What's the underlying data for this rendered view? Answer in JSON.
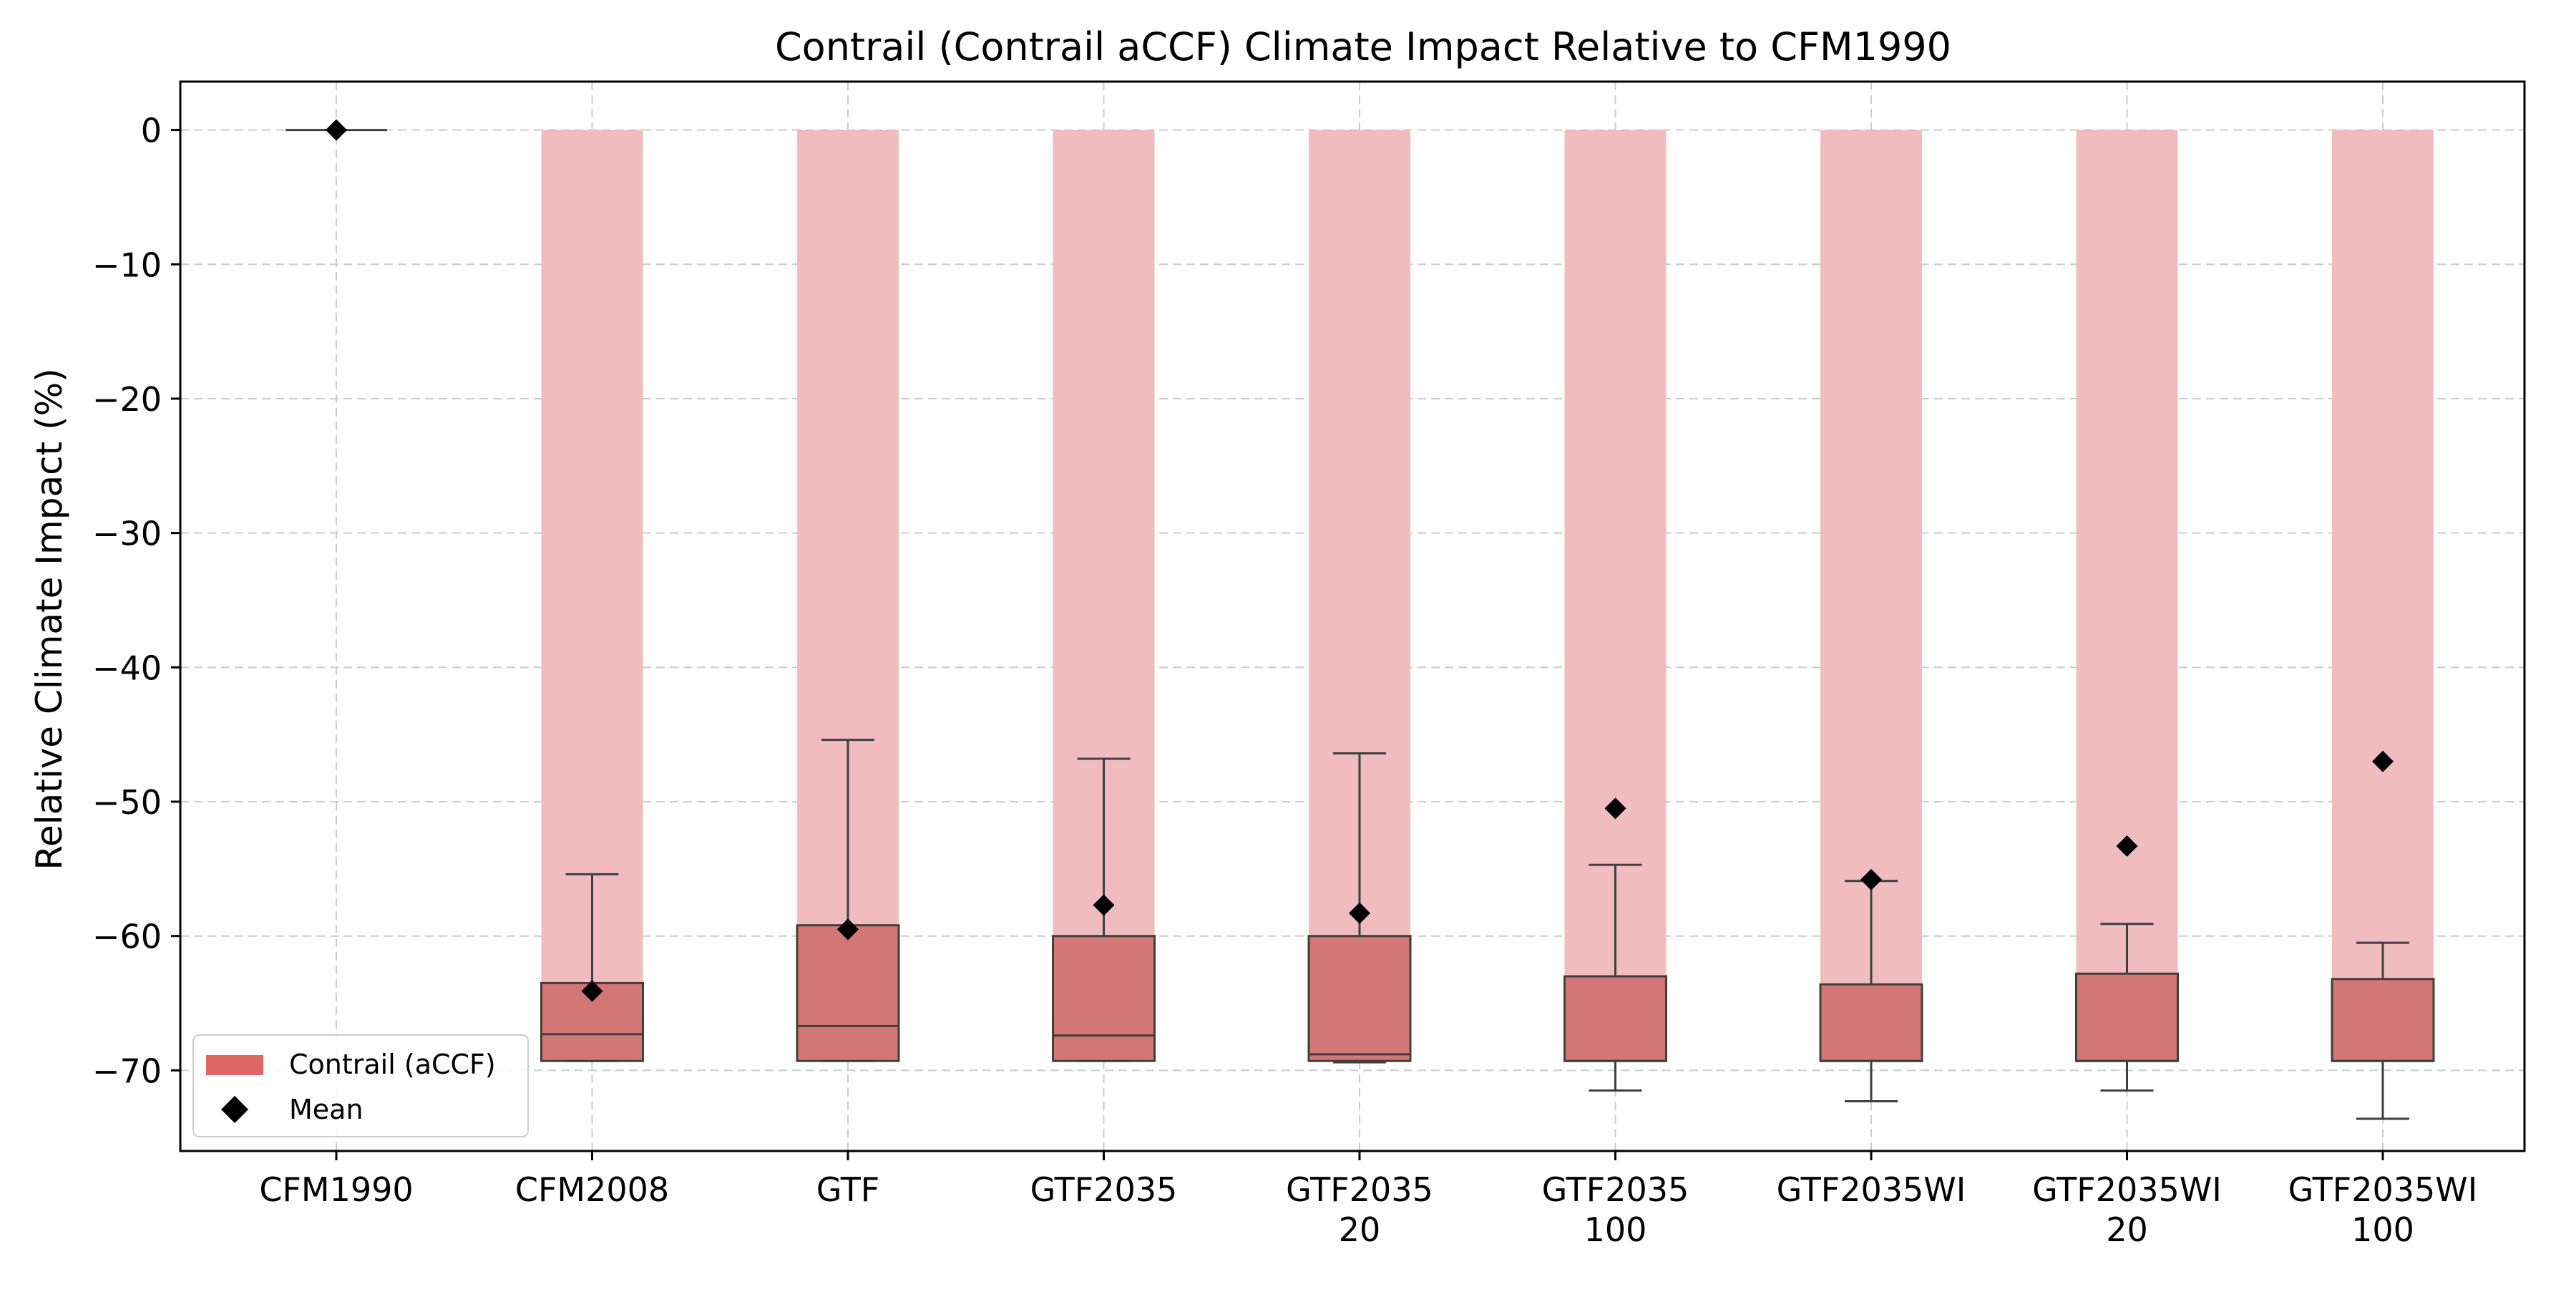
{
  "chart_data": {
    "type": "box",
    "title": "Contrail (Contrail aCCF) Climate Impact Relative to CFM1990",
    "xlabel": "",
    "ylabel": "Relative Climate Impact (%)",
    "ylim": [
      -76,
      3.6
    ],
    "yticks": [
      0,
      -10,
      -20,
      -30,
      -40,
      -50,
      -60,
      -70
    ],
    "ytick_labels": [
      "0",
      "−10",
      "−20",
      "−30",
      "−40",
      "−50",
      "−60",
      "−70"
    ],
    "grid": true,
    "legend_position": "lower-left",
    "categories": [
      [
        "CFM1990"
      ],
      [
        "CFM2008"
      ],
      [
        "GTF"
      ],
      [
        "GTF2035"
      ],
      [
        "GTF2035",
        "20"
      ],
      [
        "GTF2035",
        "100"
      ],
      [
        "GTF2035WI"
      ],
      [
        "GTF2035WI",
        "20"
      ],
      [
        "GTF2035WI",
        "100"
      ]
    ],
    "series": [
      {
        "name": "Contrail (aCCF)",
        "color": "#e06666",
        "boxes": [
          {
            "whislo": 0,
            "q1": 0,
            "med": 0,
            "q3": 0,
            "whishi": 0,
            "mean": 0
          },
          {
            "whislo": -69.3,
            "q1": -69.3,
            "med": -67.3,
            "q3": -63.5,
            "whishi": -55.4,
            "mean": -64.1
          },
          {
            "whislo": -69.3,
            "q1": -69.3,
            "med": -66.7,
            "q3": -59.2,
            "whishi": -45.4,
            "mean": -59.5
          },
          {
            "whislo": -69.3,
            "q1": -69.3,
            "med": -67.4,
            "q3": -60.0,
            "whishi": -46.8,
            "mean": -57.7
          },
          {
            "whislo": -69.4,
            "q1": -69.3,
            "med": -68.8,
            "q3": -60.0,
            "whishi": -46.4,
            "mean": -58.3
          },
          {
            "whislo": -71.5,
            "q1": -69.3,
            "med": -69.3,
            "q3": -63.0,
            "whishi": -54.7,
            "mean": -50.5
          },
          {
            "whislo": -72.3,
            "q1": -69.3,
            "med": -69.3,
            "q3": -63.6,
            "whishi": -55.9,
            "mean": -55.8
          },
          {
            "whislo": -71.5,
            "q1": -69.3,
            "med": -69.3,
            "q3": -62.8,
            "whishi": -59.1,
            "mean": -53.3
          },
          {
            "whislo": -73.6,
            "q1": -69.3,
            "med": -69.3,
            "q3": -63.2,
            "whishi": -60.5,
            "mean": -47.0
          }
        ]
      }
    ],
    "legend": [
      {
        "label": "Contrail (aCCF)",
        "color": "#e06666",
        "marker": "patch"
      },
      {
        "label": "Mean",
        "color": "#000000",
        "marker": "diamond"
      }
    ],
    "colors": {
      "box_fill": "#d27676",
      "box_edge": "#3f3f3f",
      "range_bar": "#f1bcbf",
      "mean_marker": "#000000",
      "grid": "#cccccc"
    }
  }
}
